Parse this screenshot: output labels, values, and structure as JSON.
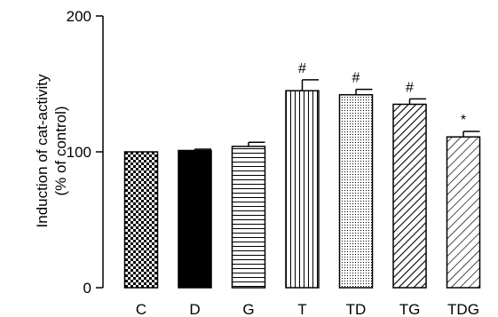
{
  "chart_data": {
    "type": "bar",
    "categories": [
      "C",
      "D",
      "G",
      "T",
      "TD",
      "TG",
      "TDG"
    ],
    "values": [
      100,
      101,
      104,
      145,
      142,
      135,
      111
    ],
    "errors": [
      0,
      1,
      3,
      8,
      4,
      4,
      4
    ],
    "annotations": [
      "",
      "",
      "",
      "#",
      "#",
      "#",
      "*"
    ],
    "patterns": [
      "checker",
      "solid",
      "horizontal",
      "vertical",
      "dots",
      "diag-dense",
      "diag-sparse"
    ],
    "ylabel_lines": [
      "Induction of cat-activity",
      "(% of control)"
    ],
    "yticks": [
      0,
      100,
      200
    ],
    "ylim": [
      0,
      200
    ],
    "grid": false,
    "colors": {
      "bar_stroke": "#000000",
      "ink": "#000000"
    }
  }
}
